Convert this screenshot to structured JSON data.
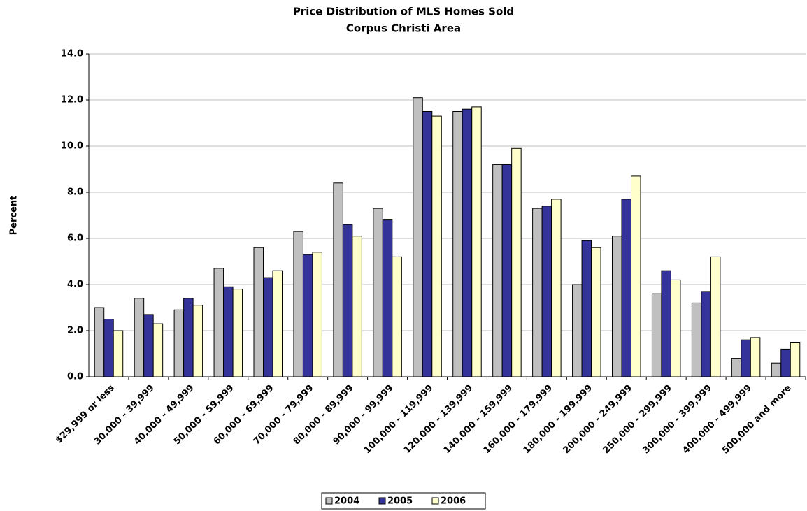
{
  "chart_data": {
    "type": "bar",
    "title": "Price Distribution of MLS Homes Sold",
    "subtitle": "Corpus Christi Area",
    "y_label": "Percent",
    "categories": [
      "$29,999 or less",
      "30,000 - 39,999",
      "40,000 - 49,999",
      "50,000 - 59,999",
      "60,000 - 69,999",
      "70,000 - 79,999",
      "80,000 - 89,999",
      "90,000 - 99,999",
      "100,000 - 119,999",
      "120,000 - 139,999",
      "140,000 - 159,999",
      "160,000 - 179,999",
      "180,000 - 199,999",
      "200,000 - 249,999",
      "250,000 - 299,999",
      "300,000 - 399,999",
      "400,000 - 499,999",
      "500,000 and more"
    ],
    "series": [
      {
        "name": "2004",
        "color": "#c0c0c0",
        "values": [
          3.0,
          3.4,
          2.9,
          4.7,
          5.6,
          6.3,
          8.4,
          7.3,
          12.1,
          11.5,
          9.2,
          7.3,
          4.0,
          6.1,
          3.6,
          3.2,
          0.8,
          0.6
        ]
      },
      {
        "name": "2005",
        "color": "#333399",
        "values": [
          2.5,
          2.7,
          3.4,
          3.9,
          4.3,
          5.3,
          6.6,
          6.8,
          11.5,
          11.6,
          9.2,
          7.4,
          5.9,
          7.7,
          4.6,
          3.7,
          1.6,
          1.2
        ]
      },
      {
        "name": "2006",
        "color": "#ffffcc",
        "values": [
          2.0,
          2.3,
          3.1,
          3.8,
          4.6,
          5.4,
          6.1,
          5.2,
          11.3,
          11.7,
          9.9,
          7.7,
          5.6,
          8.7,
          4.2,
          5.2,
          1.7,
          1.5
        ]
      }
    ],
    "ylim": [
      0,
      14
    ],
    "yticks": [
      {
        "value": 0,
        "label": "0.0"
      },
      {
        "value": 2,
        "label": "2.0"
      },
      {
        "value": 4,
        "label": "4.0"
      },
      {
        "value": 6,
        "label": "6.0"
      },
      {
        "value": 8,
        "label": "8.0"
      },
      {
        "value": 10,
        "label": "10.0"
      },
      {
        "value": 12,
        "label": "12.0"
      },
      {
        "value": 14,
        "label": "14.0"
      }
    ],
    "grid": true,
    "legend": "bottom"
  }
}
